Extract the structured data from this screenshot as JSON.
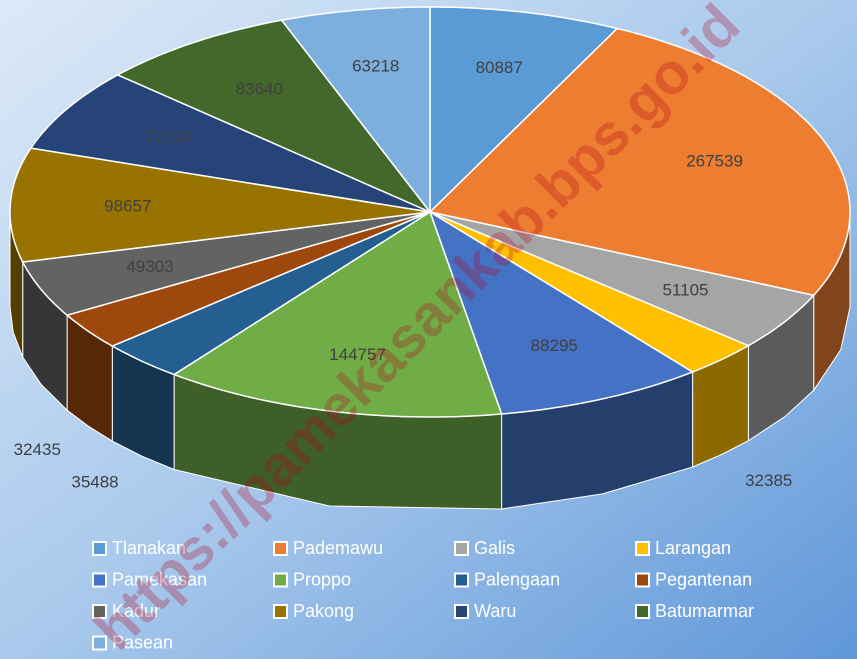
{
  "chart_data": {
    "type": "pie3d",
    "categories": [
      "Tlanakan",
      "Pademawu",
      "Galis",
      "Larangan",
      "Pamekasan",
      "Proppo",
      "Palengaan",
      "Pegantenan",
      "Kadur",
      "Pakong",
      "Waru",
      "Batumarmar",
      "Pasean"
    ],
    "values": [
      80887,
      267539,
      51105,
      32385,
      88295,
      144757,
      35488,
      32435,
      49303,
      98657,
      72724,
      83640,
      63218
    ],
    "colors": [
      "#5b9bd5",
      "#ed7d31",
      "#a5a5a5",
      "#ffc000",
      "#4472c4",
      "#70ad47",
      "#255e91",
      "#9e480e",
      "#636363",
      "#997300",
      "#264478",
      "#43682b",
      "#7cafdd"
    ],
    "watermark": "https://pamekasankab.bps.go.id"
  }
}
